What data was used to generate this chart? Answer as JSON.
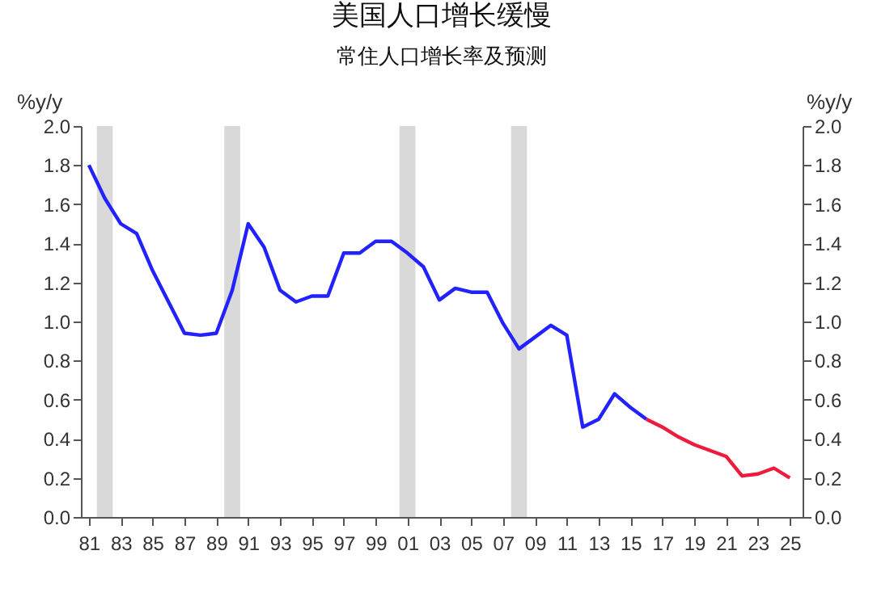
{
  "chart_data": {
    "type": "line",
    "title": "美国人口增长缓慢",
    "subtitle": "常住人口增长率及预测",
    "ylabel": "%y/y",
    "y2label": "%y/y",
    "series": [
      {
        "color": "#2222ff",
        "x": [
          1981,
          1982,
          1983,
          1984,
          1985,
          1986,
          1987,
          1988,
          1989,
          1990,
          1991,
          1992,
          1993,
          1994,
          1995,
          1996,
          1997,
          1998,
          1999,
          2000,
          2001,
          2002,
          2003,
          2004,
          2005,
          2006,
          2007,
          2008,
          2009,
          2010,
          2011,
          2012,
          2013,
          2014,
          2015,
          2016
        ],
        "values": [
          1.8,
          1.63,
          1.5,
          1.45,
          1.26,
          1.1,
          0.94,
          0.93,
          0.94,
          1.16,
          1.5,
          1.38,
          1.16,
          1.1,
          1.13,
          1.13,
          1.35,
          1.35,
          1.41,
          1.41,
          1.35,
          1.28,
          1.11,
          1.17,
          1.15,
          1.15,
          0.99,
          0.86,
          0.92,
          0.98,
          0.93,
          0.46,
          0.5,
          0.63,
          0.56,
          0.5
        ]
      },
      {
        "color": "#ee1c3c",
        "x": [
          2016,
          2017,
          2018,
          2019,
          2020,
          2021,
          2022,
          2023,
          2024,
          2025
        ],
        "values": [
          0.5,
          0.46,
          0.41,
          0.37,
          0.34,
          0.31,
          0.21,
          0.22,
          0.25,
          0.2
        ]
      }
    ],
    "bands": [
      {
        "axis": "x",
        "from": 1981.5,
        "to": 1982.5,
        "color": "#d9d9d9"
      },
      {
        "axis": "x",
        "from": 1989.5,
        "to": 1990.5,
        "color": "#d9d9d9"
      },
      {
        "axis": "x",
        "from": 2000.5,
        "to": 2001.5,
        "color": "#d9d9d9"
      },
      {
        "axis": "x",
        "from": 2007.5,
        "to": 2008.5,
        "color": "#d9d9d9"
      }
    ],
    "xlim": [
      1980.5,
      2025.8
    ],
    "xticks": [
      {
        "value": 1981,
        "label": "81"
      },
      {
        "value": 1983,
        "label": "83"
      },
      {
        "value": 1985,
        "label": "85"
      },
      {
        "value": 1987,
        "label": "87"
      },
      {
        "value": 1989,
        "label": "89"
      },
      {
        "value": 1991,
        "label": "91"
      },
      {
        "value": 1993,
        "label": "93"
      },
      {
        "value": 1995,
        "label": "95"
      },
      {
        "value": 1997,
        "label": "97"
      },
      {
        "value": 1999,
        "label": "99"
      },
      {
        "value": 2001,
        "label": "01"
      },
      {
        "value": 2003,
        "label": "03"
      },
      {
        "value": 2005,
        "label": "05"
      },
      {
        "value": 2007,
        "label": "07"
      },
      {
        "value": 2009,
        "label": "09"
      },
      {
        "value": 2011,
        "label": "11"
      },
      {
        "value": 2013,
        "label": "13"
      },
      {
        "value": 2015,
        "label": "15"
      },
      {
        "value": 2017,
        "label": "17"
      },
      {
        "value": 2019,
        "label": "19"
      },
      {
        "value": 2021,
        "label": "21"
      },
      {
        "value": 2023,
        "label": "23"
      },
      {
        "value": 2025,
        "label": "25"
      }
    ],
    "ylim": [
      0,
      2
    ],
    "yticks": [
      {
        "value": 0,
        "label": "0.0"
      },
      {
        "value": 0.2,
        "label": "0.2"
      },
      {
        "value": 0.4,
        "label": "0.4"
      },
      {
        "value": 0.6,
        "label": "0.6"
      },
      {
        "value": 0.8,
        "label": "0.8"
      },
      {
        "value": 1,
        "label": "1.0"
      },
      {
        "value": 1.2,
        "label": "1.2"
      },
      {
        "value": 1.4,
        "label": "1.4"
      },
      {
        "value": 1.6,
        "label": "1.6"
      },
      {
        "value": 1.8,
        "label": "1.8"
      },
      {
        "value": 2,
        "label": "2.0"
      }
    ],
    "y2lim": [
      0,
      2
    ],
    "y2ticks": [
      {
        "value": 0,
        "label": "0.0"
      },
      {
        "value": 0.2,
        "label": "0.2"
      },
      {
        "value": 0.4,
        "label": "0.4"
      },
      {
        "value": 0.6,
        "label": "0.6"
      },
      {
        "value": 0.8,
        "label": "0.8"
      },
      {
        "value": 1,
        "label": "1.0"
      },
      {
        "value": 1.2,
        "label": "1.2"
      },
      {
        "value": 1.4,
        "label": "1.4"
      },
      {
        "value": 1.6,
        "label": "1.6"
      },
      {
        "value": 1.8,
        "label": "1.8"
      },
      {
        "value": 2,
        "label": "2.0"
      }
    ],
    "marker": "none",
    "line_style": "solid"
  }
}
